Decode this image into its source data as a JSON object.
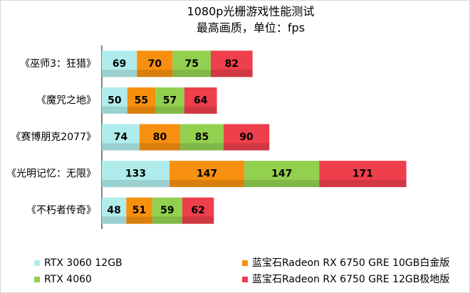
{
  "chart_data": {
    "type": "stacked-bar-horizontal",
    "title": "1080p光栅游戏性能测试",
    "subtitle": "最高画质，单位：fps",
    "categories": [
      "《巫师3：狂猎》",
      "《魔咒之地》",
      "《赛博朋克2077》",
      "《光明记忆：无限》",
      "《不朽者传奇》"
    ],
    "series": [
      {
        "name": "RTX 3060 12GB",
        "color": "#b0ecec",
        "values": [
          69,
          50,
          74,
          133,
          48
        ]
      },
      {
        "name": "蓝宝石Radeon RX 6750 GRE 10GB白金版",
        "color": "#f7900f",
        "values": [
          70,
          55,
          80,
          147,
          51
        ]
      },
      {
        "name": "RTX 4060",
        "color": "#92d050",
        "values": [
          75,
          57,
          85,
          147,
          59
        ]
      },
      {
        "name": "蓝宝石Radeon RX 6750 GRE 12GB极地版",
        "color": "#ee3f4c",
        "values": [
          82,
          64,
          90,
          171,
          62
        ]
      }
    ],
    "legend": "bottom"
  }
}
